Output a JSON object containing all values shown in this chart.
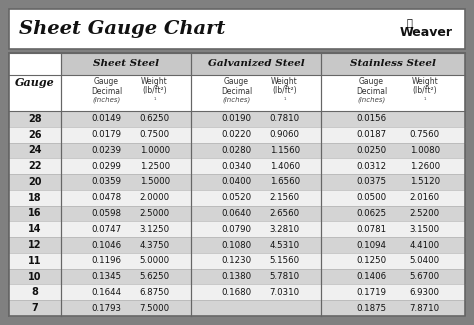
{
  "title": "Sheet Gauge Chart",
  "bg_outer": "#808080",
  "bg_white": "#ffffff",
  "header_section_bg": "#c8c8c8",
  "row_dark": "#d4d4d4",
  "row_light": "#f0f0f0",
  "border_color": "#666666",
  "gauges": [
    28,
    26,
    24,
    22,
    20,
    18,
    16,
    14,
    12,
    11,
    10,
    8,
    7
  ],
  "sheet_steel_decimal": [
    "0.0149",
    "0.0179",
    "0.0239",
    "0.0299",
    "0.0359",
    "0.0478",
    "0.0598",
    "0.0747",
    "0.1046",
    "0.1196",
    "0.1345",
    "0.1644",
    "0.1793"
  ],
  "sheet_steel_weight": [
    "0.6250",
    "0.7500",
    "1.0000",
    "1.2500",
    "1.5000",
    "2.0000",
    "2.5000",
    "3.1250",
    "4.3750",
    "5.0000",
    "5.6250",
    "6.8750",
    "7.5000"
  ],
  "galvanized_decimal": [
    "0.0190",
    "0.0220",
    "0.0280",
    "0.0340",
    "0.0400",
    "0.0520",
    "0.0640",
    "0.0790",
    "0.1080",
    "0.1230",
    "0.1380",
    "0.1680",
    ""
  ],
  "galvanized_weight": [
    "0.7810",
    "0.9060",
    "1.1560",
    "1.4060",
    "1.6560",
    "2.1560",
    "2.6560",
    "3.2810",
    "4.5310",
    "5.1560",
    "5.7810",
    "7.0310",
    ""
  ],
  "stainless_decimal": [
    "0.0156",
    "0.0187",
    "0.0250",
    "0.0312",
    "0.0375",
    "0.0500",
    "0.0625",
    "0.0781",
    "0.1094",
    "0.1250",
    "0.1406",
    "0.1719",
    "0.1875"
  ],
  "stainless_weight": [
    "",
    "0.7560",
    "1.0080",
    "1.2600",
    "1.5120",
    "2.0160",
    "2.5200",
    "3.1500",
    "4.4100",
    "5.0400",
    "5.6700",
    "6.9300",
    "7.8710"
  ],
  "figsize": [
    4.74,
    3.25
  ],
  "dpi": 100
}
